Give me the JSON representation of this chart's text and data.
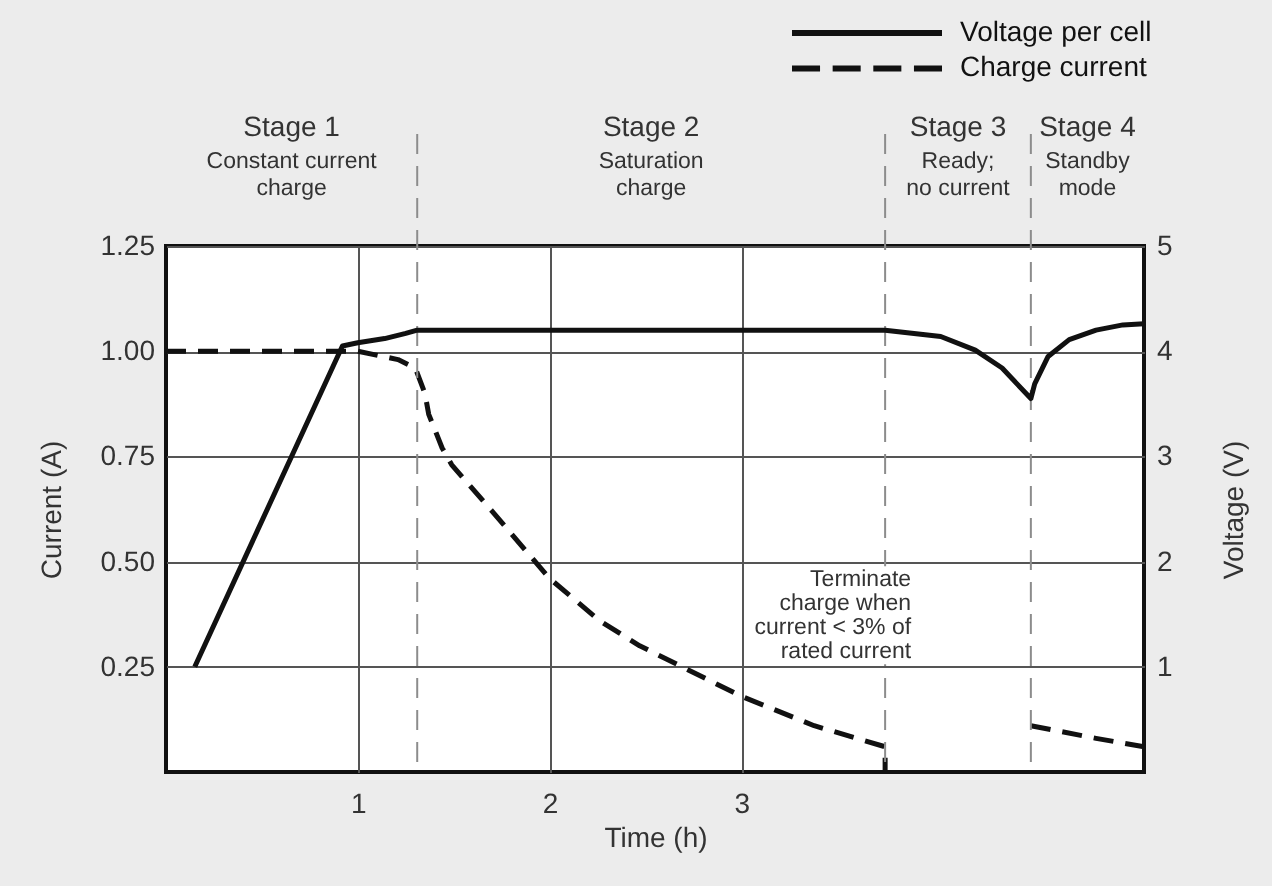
{
  "chart_data": {
    "type": "line",
    "xlabel": "Time (h)",
    "ylabel": "Current (A)",
    "y2label": "Voltage (V)",
    "xlim": [
      0,
      5.1
    ],
    "xticks": [
      1,
      2,
      3
    ],
    "ylim": [
      0,
      1.25
    ],
    "yticks": [
      0.25,
      {
        "value": 0.5,
        "label": "0.50"
      },
      0.75,
      {
        "value": 1,
        "label": "1.00"
      },
      1.25
    ],
    "y2lim": [
      0,
      5
    ],
    "y2ticks": [
      1,
      2,
      3,
      4,
      5
    ],
    "grid": true,
    "legend": "top right",
    "series": [
      {
        "name": "Voltage per cell",
        "color": "#111111",
        "axis": "y2",
        "line_style": "solid",
        "x": [
          0.15,
          0.92,
          1.0,
          1.14,
          1.25,
          1.31,
          3.75,
          4.04,
          4.22,
          4.36,
          4.51,
          4.53,
          4.6,
          4.71,
          4.85,
          4.99,
          5.1
        ],
        "values": [
          1.0,
          4.05,
          4.08,
          4.12,
          4.17,
          4.2,
          4.2,
          4.14,
          4.01,
          3.84,
          3.55,
          3.69,
          3.95,
          4.11,
          4.2,
          4.25,
          4.26
        ]
      },
      {
        "name": "Charge current",
        "color": "#111111",
        "line_style": "dashed",
        "x": [
          0,
          1.0,
          1.21,
          1.3,
          1.35,
          1.37,
          1.44,
          1.49,
          1.7,
          2.0,
          2.26,
          2.47,
          3.0,
          3.38,
          3.75,
          3.75,
          4.1,
          4.51,
          4.85,
          5.1
        ],
        "values": [
          1.0,
          1.0,
          0.98,
          0.96,
          0.9,
          0.85,
          0.77,
          0.73,
          0.62,
          0.46,
          0.36,
          0.3,
          0.18,
          0.11,
          0.06,
          0,
          null,
          0.11,
          0.08,
          0.06
        ]
      }
    ],
    "ref_lines": [
      {
        "axis": "x",
        "value": 1.31,
        "color": "#8c8c8c",
        "line_style": "dashed"
      },
      {
        "axis": "x",
        "value": 3.75,
        "color": "#8c8c8c",
        "line_style": "dashed"
      },
      {
        "axis": "x",
        "value": 4.51,
        "color": "#8c8c8c",
        "line_style": "dashed"
      }
    ],
    "annotations": [
      "Stage 1\nConstant current\ncharge",
      "Stage 2\nSaturation\ncharge",
      "Stage 3\nReady;\nno current",
      "Stage 4\nStandby\nmode",
      {
        "text": "Terminate\ncharge when\ncurrent < 3% of\nrated current",
        "x": 3.75,
        "y": 0.37
      }
    ]
  }
}
